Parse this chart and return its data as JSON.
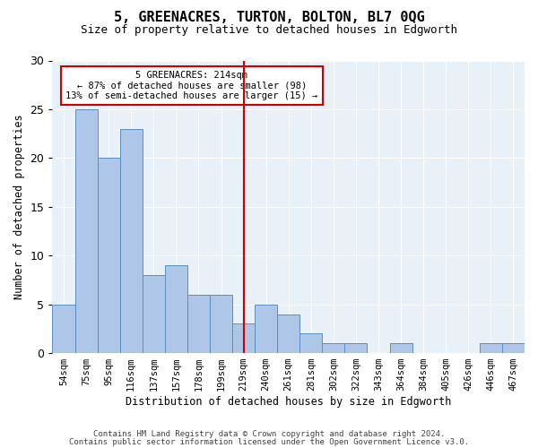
{
  "title": "5, GREENACRES, TURTON, BOLTON, BL7 0QG",
  "subtitle": "Size of property relative to detached houses in Edgworth",
  "xlabel": "Distribution of detached houses by size in Edgworth",
  "ylabel": "Number of detached properties",
  "categories": [
    "54sqm",
    "75sqm",
    "95sqm",
    "116sqm",
    "137sqm",
    "157sqm",
    "178sqm",
    "199sqm",
    "219sqm",
    "240sqm",
    "261sqm",
    "281sqm",
    "302sqm",
    "322sqm",
    "343sqm",
    "364sqm",
    "384sqm",
    "405sqm",
    "426sqm",
    "446sqm",
    "467sqm"
  ],
  "values": [
    5,
    25,
    20,
    23,
    8,
    9,
    6,
    6,
    3,
    5,
    4,
    2,
    1,
    1,
    0,
    1,
    0,
    0,
    0,
    1,
    1
  ],
  "bar_color": "#aec6e8",
  "bar_edge_color": "#5a8fc0",
  "vline_x": 8,
  "vline_color": "#cc0000",
  "annotation_line1": "5 GREENACRES: 214sqm",
  "annotation_line2": "← 87% of detached houses are smaller (98)",
  "annotation_line3": "13% of semi-detached houses are larger (15) →",
  "annotation_box_color": "#ffffff",
  "annotation_box_edge": "#cc0000",
  "ylim": [
    0,
    30
  ],
  "yticks": [
    0,
    5,
    10,
    15,
    20,
    25,
    30
  ],
  "bg_color": "#e8f0f8",
  "footer1": "Contains HM Land Registry data © Crown copyright and database right 2024.",
  "footer2": "Contains public sector information licensed under the Open Government Licence v3.0."
}
